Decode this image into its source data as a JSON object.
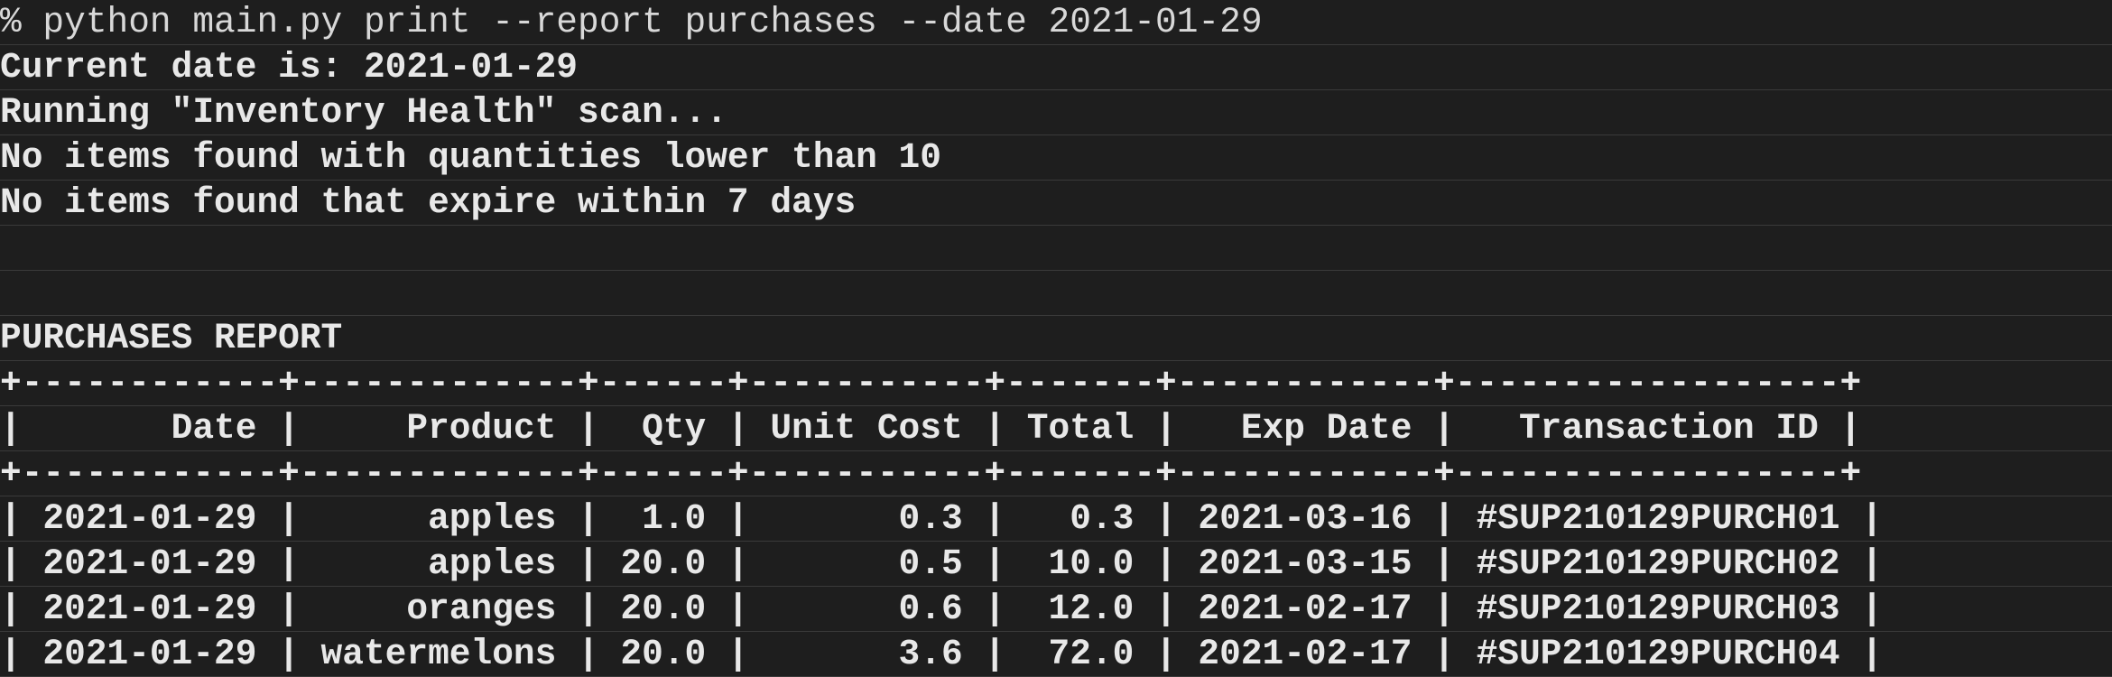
{
  "terminal": {
    "command": "% python main.py print --report purchases --date 2021-01-29",
    "output": [
      "Current date is: 2021-01-29",
      "Running \"Inventory Health\" scan...",
      "No items found with quantities lower than 10",
      "No items found that expire within 7 days",
      "",
      "",
      "PURCHASES REPORT"
    ],
    "report_table": {
      "border": "+------------+-------------+------+-----------+-------+------------+------------------+",
      "header": "|       Date |     Product |  Qty | Unit Cost | Total |   Exp Date |   Transaction ID |",
      "rows": [
        "| 2021-01-29 |      apples |  1.0 |       0.3 |   0.3 | 2021-03-16 | #SUP210129PURCH01 |",
        "| 2021-01-29 |      apples | 20.0 |       0.5 |  10.0 | 2021-03-15 | #SUP210129PURCH02 |",
        "| 2021-01-29 |     oranges | 20.0 |       0.6 |  12.0 | 2021-02-17 | #SUP210129PURCH03 |",
        "| 2021-01-29 | watermelons | 20.0 |       3.6 |  72.0 | 2021-02-17 | #SUP210129PURCH04 |"
      ]
    }
  }
}
